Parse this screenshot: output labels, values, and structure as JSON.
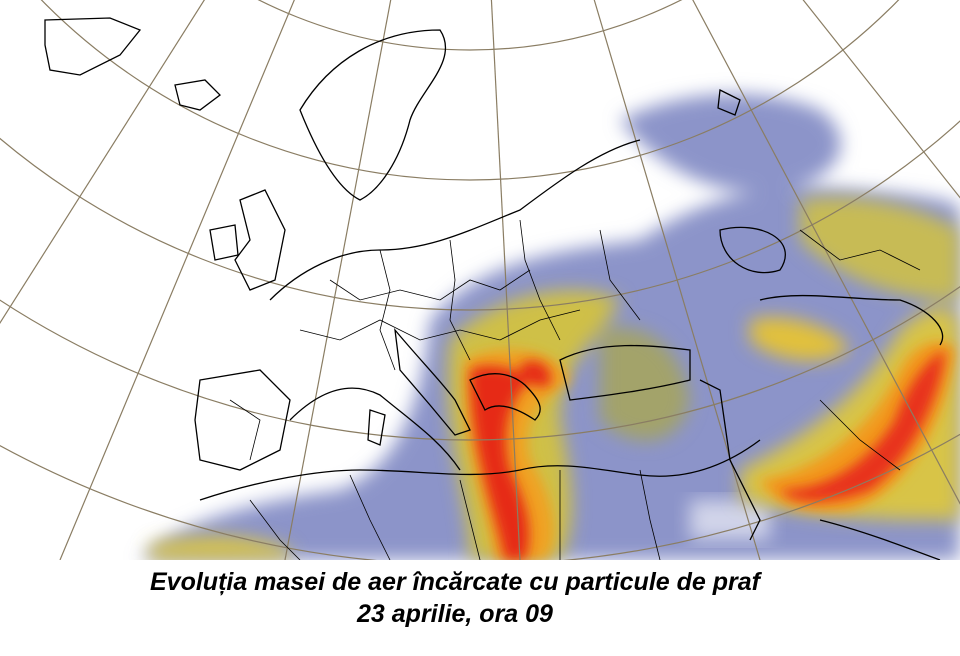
{
  "caption": {
    "line1": "Evoluția masei de aer încărcate cu particule de praf",
    "line2": "23 aprilie, ora 09"
  }
}
